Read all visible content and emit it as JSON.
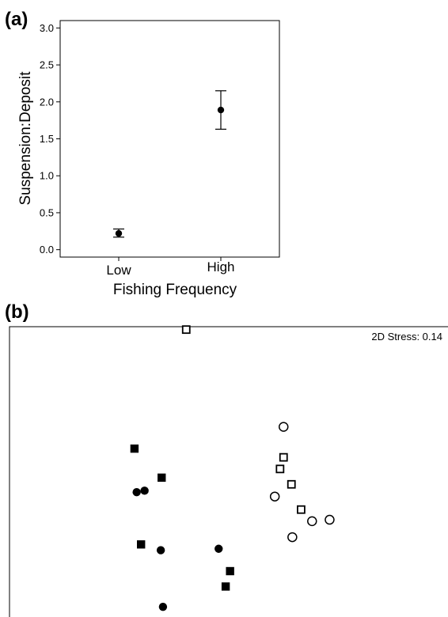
{
  "chart_data": [
    {
      "panel_label": "(a)",
      "type": "scatter",
      "title": "",
      "xlabel": "Fishing Frequency",
      "ylabel": "Suspension:Deposit",
      "categories": [
        "Low",
        "High"
      ],
      "values": [
        0.22,
        1.89
      ],
      "error_low": [
        0.17,
        1.63
      ],
      "error_high": [
        0.28,
        2.15
      ],
      "ylim": [
        -0.1,
        3.1
      ],
      "yticks": [
        "0.0",
        "0.5",
        "1.0",
        "1.5",
        "2.0",
        "2.5",
        "3.0"
      ],
      "grid": false,
      "legend": "none"
    },
    {
      "panel_label": "(b)",
      "type": "scatter",
      "title": "",
      "annotation": "2D Stress: 0.14",
      "xlabel": "",
      "ylabel": "",
      "xlim": [
        0,
        100
      ],
      "ylim": [
        0,
        100
      ],
      "grid": false,
      "legend": "none",
      "series": [
        {
          "marker": "filled-square",
          "points": [
            [
              28.5,
              58
            ],
            [
              34.7,
              48
            ],
            [
              30,
              25
            ],
            [
              50.3,
              15.8
            ],
            [
              49.3,
              10.5
            ]
          ]
        },
        {
          "marker": "filled-circle",
          "points": [
            [
              29,
              43
            ],
            [
              30.8,
              43.5
            ],
            [
              34.5,
              23
            ],
            [
              47.7,
              23.5
            ],
            [
              35,
              3.5
            ]
          ]
        },
        {
          "marker": "open-square",
          "points": [
            [
              40.3,
              99
            ],
            [
              62.5,
              55
            ],
            [
              61.7,
              51
            ],
            [
              64.3,
              45.7
            ],
            [
              66.5,
              37
            ]
          ]
        },
        {
          "marker": "open-circle",
          "points": [
            [
              62.5,
              65.5
            ],
            [
              60.5,
              41.5
            ],
            [
              64.5,
              27.5
            ],
            [
              69,
              33
            ],
            [
              73,
              33.5
            ]
          ]
        }
      ]
    }
  ]
}
